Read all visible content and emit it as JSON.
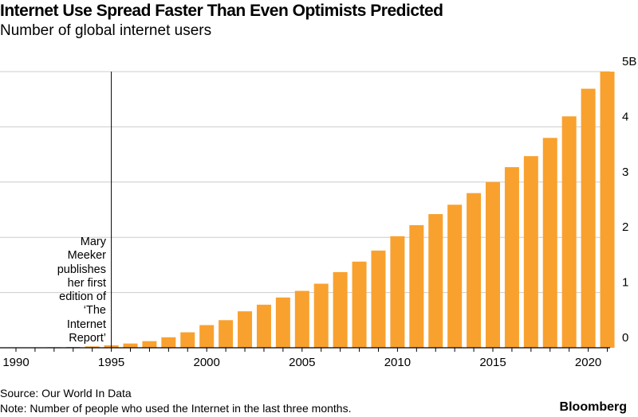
{
  "chart_data": {
    "type": "bar",
    "title": "Internet Use Spread Faster Than Even Optimists Predicted",
    "subtitle": "Number of global internet users",
    "xlabel": "",
    "ylabel": "",
    "categories": [
      1990,
      1991,
      1992,
      1993,
      1994,
      1995,
      1996,
      1997,
      1998,
      1999,
      2000,
      2001,
      2002,
      2003,
      2004,
      2005,
      2006,
      2007,
      2008,
      2009,
      2010,
      2011,
      2012,
      2013,
      2014,
      2015,
      2016,
      2017,
      2018,
      2019,
      2020,
      2021
    ],
    "values": [
      0.003,
      0.004,
      0.01,
      0.014,
      0.025,
      0.044,
      0.077,
      0.12,
      0.19,
      0.28,
      0.41,
      0.5,
      0.66,
      0.78,
      0.91,
      1.03,
      1.16,
      1.37,
      1.56,
      1.76,
      2.02,
      2.22,
      2.42,
      2.59,
      2.8,
      3.0,
      3.27,
      3.47,
      3.8,
      4.19,
      4.69,
      5.0
    ],
    "unit": "billions",
    "ylim": [
      0,
      5
    ],
    "yticks": [
      {
        "value": 0,
        "label": "0"
      },
      {
        "value": 1,
        "label": "1"
      },
      {
        "value": 2,
        "label": "2"
      },
      {
        "value": 3,
        "label": "3"
      },
      {
        "value": 4,
        "label": "4"
      },
      {
        "value": 5,
        "label": "5B"
      }
    ],
    "xticks": [
      {
        "value": 1990,
        "label": "1990"
      },
      {
        "value": 1995,
        "label": "1995"
      },
      {
        "value": 2000,
        "label": "2000"
      },
      {
        "value": 2005,
        "label": "2005"
      },
      {
        "value": 2010,
        "label": "2010"
      },
      {
        "value": 2015,
        "label": "2015"
      },
      {
        "value": 2020,
        "label": "2020"
      }
    ],
    "grid": true,
    "bar_color": "#F9A12E",
    "annotation": {
      "x": 1995,
      "text": "Mary Meeker publishes her first edition of ‘The Internet Report’",
      "lines": [
        "Mary",
        "Meeker",
        "publishes",
        "her first",
        "edition of",
        "‘The",
        "Internet",
        "Report’"
      ]
    }
  },
  "footer": {
    "source": "Source: Our World In Data",
    "note": "Note: Number of people who used the Internet in the last three months.",
    "brand": "Bloomberg"
  }
}
